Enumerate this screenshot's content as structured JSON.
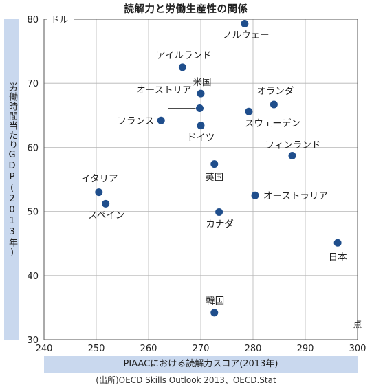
{
  "chart_data": {
    "type": "scatter",
    "title": "読解力と労働生産性の関係",
    "xlabel": "PIAACにおける読解力スコア(2013年)",
    "ylabel": "労働時間当たりGDP(2013年)",
    "y_unit": "ドル",
    "x_unit": "点",
    "xlim": [
      240,
      300
    ],
    "ylim": [
      30,
      80
    ],
    "xticks": [
      240,
      250,
      260,
      270,
      280,
      290,
      300
    ],
    "yticks": [
      30,
      40,
      50,
      60,
      70,
      80
    ],
    "grid": true,
    "marker_color": "#1f4e8c",
    "points": [
      {
        "label": "ノルウェー",
        "x": 278.4,
        "y": 79.3
      },
      {
        "label": "アイルランド",
        "x": 266.5,
        "y": 72.5
      },
      {
        "label": "米国",
        "x": 270.0,
        "y": 68.4
      },
      {
        "label": "オーストリア",
        "x": 269.8,
        "y": 66.1
      },
      {
        "label": "オランダ",
        "x": 284.0,
        "y": 66.7
      },
      {
        "label": "スウェーデン",
        "x": 279.2,
        "y": 65.6
      },
      {
        "label": "フランス",
        "x": 262.4,
        "y": 64.2
      },
      {
        "label": "ドイツ",
        "x": 270.0,
        "y": 63.4
      },
      {
        "label": "フィンランド",
        "x": 287.5,
        "y": 58.7
      },
      {
        "label": "英国",
        "x": 272.6,
        "y": 57.4
      },
      {
        "label": "イタリア",
        "x": 250.5,
        "y": 53.0
      },
      {
        "label": "オーストラリア",
        "x": 280.4,
        "y": 52.5
      },
      {
        "label": "スペイン",
        "x": 251.8,
        "y": 51.2
      },
      {
        "label": "カナダ",
        "x": 273.5,
        "y": 49.9
      },
      {
        "label": "日本",
        "x": 296.2,
        "y": 45.1
      },
      {
        "label": "韓国",
        "x": 272.6,
        "y": 34.2
      }
    ]
  },
  "source": "(出所)OECD Skills Outlook 2013、OECD.Stat"
}
